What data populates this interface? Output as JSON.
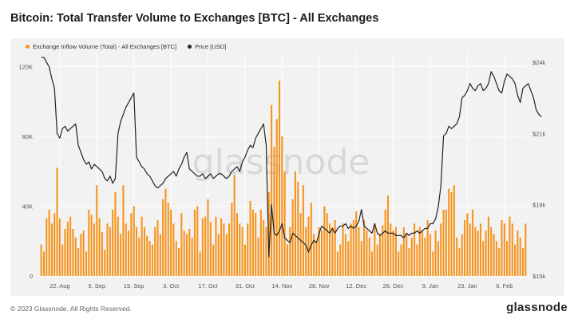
{
  "title": "Bitcoin: Total Transfer Volume to Exchanges [BTC] - All Exchanges",
  "footer": "© 2023 Glassnode. All Rights Reserved.",
  "logo_text": "glassnode",
  "watermark": "glassnode",
  "colors": {
    "bars": "#f7931a",
    "price": "#222222",
    "panel": "#f2f2f2",
    "grid": "#ffffff"
  },
  "chart_data": {
    "type": "bar",
    "title": "Bitcoin: Total Transfer Volume to Exchanges [BTC] - All Exchanges",
    "legend": [
      {
        "name": "Exchange Inflow Volume (Total) - All Exchanges [BTC]",
        "color": "#f7931a",
        "marker": "dot"
      },
      {
        "name": "Price [USD]",
        "color": "#222222",
        "marker": "dot"
      }
    ],
    "legend_placement": "top-left",
    "grid": true,
    "x_tick_labels": [
      "22. Aug",
      "5. Sep",
      "19. Sep",
      "3. Oct",
      "17. Oct",
      "31. Oct",
      "14. Nov",
      "28. Nov",
      "12. Dec",
      "26. Dec",
      "9. Jan",
      "23. Jan",
      "6. Feb"
    ],
    "x_tick_index": [
      7,
      21,
      35,
      49,
      63,
      77,
      91,
      105,
      119,
      133,
      147,
      161,
      175
    ],
    "y_left": {
      "ticks": [
        0,
        40000,
        80000,
        120000
      ],
      "tick_labels": [
        "0",
        "40K",
        "80K",
        "120K"
      ],
      "lim": [
        0,
        128000
      ]
    },
    "y_right": {
      "ticks": [
        15000,
        18000,
        21000,
        24000
      ],
      "tick_labels": [
        "$15k",
        "$18k",
        "$21k",
        "$24k"
      ],
      "lim": [
        15000,
        24400
      ]
    },
    "series": [
      {
        "name": "Exchange Inflow Volume (Total) - All Exchanges [BTC]",
        "type": "bar",
        "values": [
          18000,
          14000,
          33000,
          38000,
          30000,
          36000,
          62000,
          33000,
          18000,
          27000,
          31000,
          34000,
          27000,
          22000,
          16000,
          24000,
          26000,
          14000,
          38000,
          35000,
          30000,
          52000,
          33000,
          25000,
          15000,
          30000,
          28000,
          38000,
          48000,
          34000,
          24000,
          52000,
          30000,
          26000,
          36000,
          40000,
          28000,
          22000,
          34000,
          28000,
          23000,
          20000,
          18000,
          28000,
          32000,
          24000,
          44000,
          50000,
          42000,
          38000,
          30000,
          20000,
          16000,
          36000,
          26000,
          24000,
          27000,
          22000,
          38000,
          40000,
          14000,
          33000,
          34000,
          44000,
          31000,
          18000,
          34000,
          24000,
          33000,
          30000,
          24000,
          30000,
          42000,
          58000,
          36000,
          30000,
          28000,
          18000,
          30000,
          43000,
          38000,
          36000,
          22000,
          38000,
          32000,
          28000,
          48000,
          98000,
          74000,
          90000,
          112000,
          80000,
          60000,
          18000,
          28000,
          44000,
          60000,
          54000,
          36000,
          52000,
          28000,
          34000,
          42000,
          24000,
          20000,
          28000,
          26000,
          40000,
          36000,
          30000,
          28000,
          32000,
          14000,
          18000,
          30000,
          24000,
          20000,
          30000,
          32000,
          37000,
          28000,
          20000,
          32000,
          26000,
          22000,
          14000,
          30000,
          18000,
          24000,
          29000,
          38000,
          46000,
          30000,
          26000,
          28000,
          14000,
          18000,
          28000,
          24000,
          16000,
          22000,
          30000,
          18000,
          28000,
          26000,
          22000,
          32000,
          24000,
          14000,
          26000,
          20000,
          30000,
          38000,
          38000,
          50000,
          48000,
          52000,
          22000,
          16000,
          24000,
          32000,
          36000,
          30000,
          38000,
          28000,
          26000,
          30000,
          20000,
          26000,
          34000,
          28000,
          24000,
          20000,
          16000,
          32000,
          30000,
          20000,
          34000,
          30000,
          18000,
          26000,
          22000,
          16000,
          30000
        ]
      },
      {
        "name": "Price [USD]",
        "type": "line",
        "values": [
          24200,
          24200,
          24000,
          23800,
          23300,
          22900,
          21000,
          20800,
          21200,
          21300,
          21100,
          21200,
          21300,
          21400,
          20500,
          20200,
          19900,
          19700,
          19800,
          19500,
          19700,
          19600,
          19500,
          19400,
          19100,
          19000,
          19200,
          18900,
          19100,
          21000,
          21500,
          21800,
          22100,
          22300,
          22500,
          22700,
          20000,
          19800,
          19600,
          19500,
          19300,
          19200,
          19000,
          18800,
          18700,
          18800,
          18900,
          19100,
          19200,
          19300,
          19400,
          19200,
          19500,
          19700,
          20000,
          20200,
          19500,
          19400,
          19300,
          19200,
          19200,
          19300,
          19100,
          19200,
          19300,
          19100,
          19200,
          19300,
          19300,
          19200,
          19100,
          19200,
          19400,
          19500,
          19600,
          19400,
          19800,
          20000,
          20300,
          20500,
          20400,
          20800,
          21000,
          21200,
          21400,
          20500,
          15800,
          18000,
          16800,
          16700,
          16900,
          17200,
          16600,
          16500,
          16400,
          16800,
          16700,
          16600,
          16500,
          16400,
          16300,
          16000,
          16300,
          16500,
          16400,
          16800,
          17100,
          17000,
          16900,
          16800,
          17000,
          16800,
          17000,
          17100,
          17100,
          17200,
          17000,
          17100,
          17000,
          17100,
          17300,
          17800,
          17100,
          17000,
          16900,
          16800,
          17200,
          16800,
          16700,
          16800,
          16900,
          16800,
          16800,
          16800,
          16700,
          16700,
          16700,
          16600,
          16800,
          16700,
          16800,
          16800,
          16900,
          16800,
          16900,
          17000,
          17000,
          17200,
          17200,
          17400,
          17900,
          18800,
          20900,
          21000,
          21300,
          21200,
          21300,
          21400,
          21700,
          22500,
          22600,
          22800,
          23100,
          22900,
          22800,
          23000,
          23100,
          22800,
          22900,
          23100,
          23600,
          23400,
          23100,
          22800,
          22700,
          23200,
          23500,
          23400,
          23300,
          23100,
          22600,
          22300,
          22900,
          23000,
          23100,
          22800,
          22500,
          22000,
          21800,
          21700
        ]
      }
    ]
  }
}
